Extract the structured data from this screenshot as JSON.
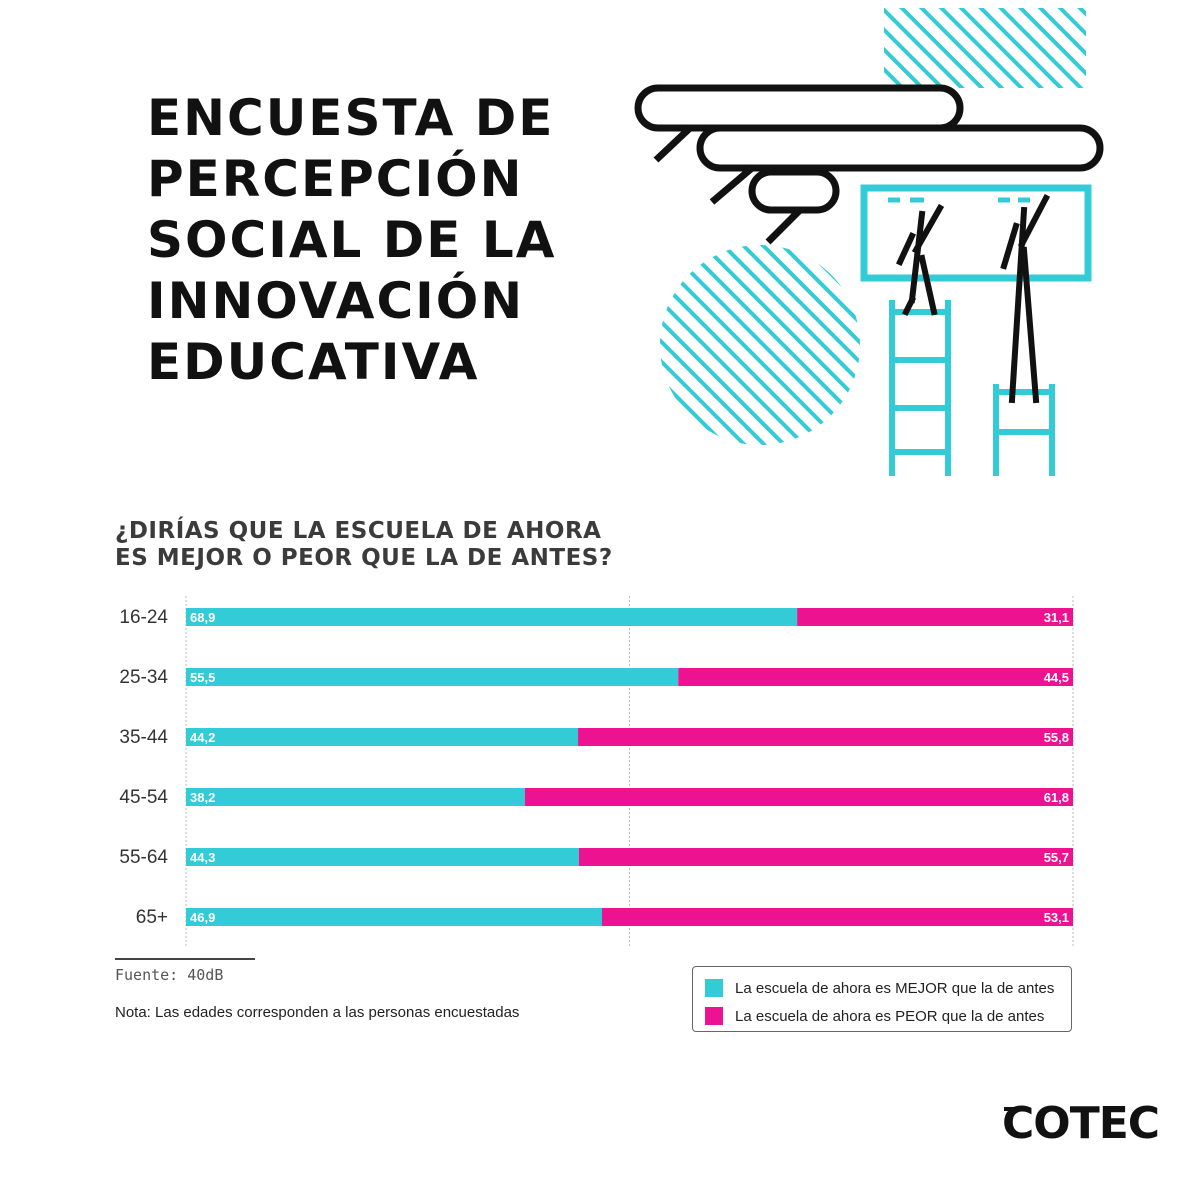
{
  "title_lines": [
    "ENCUESTA DE",
    "PERCEPCIÓN",
    "SOCIAL DE LA",
    "INNOVACIÓN",
    "EDUCATIVA"
  ],
  "question_lines": [
    "¿DIRÍAS QUE LA ESCUELA DE AHORA",
    "ES MEJOR O PEOR QUE LA DE ANTES?"
  ],
  "colors": {
    "mejor": "#33ccd6",
    "peor": "#ec1290",
    "accent": "#33ccd6",
    "ink": "#111111"
  },
  "chart_data": {
    "type": "bar",
    "orientation": "horizontal",
    "stacked": true,
    "categories": [
      "16-24",
      "25-34",
      "35-44",
      "45-54",
      "55-64",
      "65+"
    ],
    "series": [
      {
        "name": "La escuela de ahora es MEJOR que la de antes",
        "values": [
          68.9,
          55.5,
          44.2,
          38.2,
          44.3,
          46.9
        ],
        "labels": [
          "68,9",
          "55,5",
          "44,2",
          "38,2",
          "44,3",
          "46,9"
        ]
      },
      {
        "name": "La escuela de ahora es PEOR que la de antes",
        "values": [
          31.1,
          44.5,
          55.8,
          61.8,
          55.7,
          53.1
        ],
        "labels": [
          "31,1",
          "44,5",
          "55,8",
          "61,8",
          "55,7",
          "53,1"
        ]
      }
    ],
    "xlim": [
      0,
      100
    ],
    "grid": "dashed vertical lines at 0, 50, 100",
    "legend_placement": "bottom-right"
  },
  "source": "Fuente: 40dB",
  "note": "Nota:  Las edades corresponden a las personas encuestadas",
  "logo": "COTEC"
}
